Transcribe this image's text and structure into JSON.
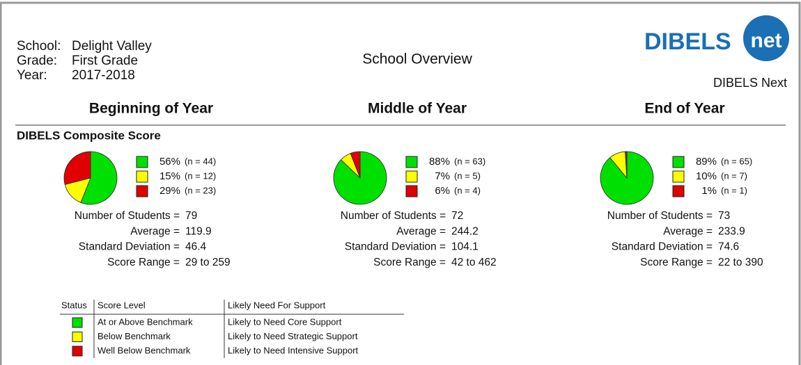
{
  "header": {
    "labels": [
      "School:",
      "Grade:",
      "Year:"
    ],
    "values": [
      "Delight Valley",
      "First Grade",
      "2017-2018"
    ],
    "title": "School Overview",
    "logo_main": "DIBELS",
    "logo_badge": "net",
    "product": "DIBELS Next"
  },
  "section_title": "DIBELS Composite Score",
  "periods": [
    {
      "title": "Beginning of Year",
      "chart": {
        "type": "pie",
        "values": [
          56,
          15,
          29
        ],
        "value_labels": [
          "56%",
          "15%",
          "29%"
        ],
        "n_labels": [
          "(n = 44)",
          "(n = 12)",
          "(n = 23)"
        ],
        "colors": [
          "#00e000",
          "#ffff00",
          "#e00000"
        ]
      },
      "stats": [
        {
          "label": "Number of Students =",
          "value": "79"
        },
        {
          "label": "Average =",
          "value": "119.9"
        },
        {
          "label": "Standard Deviation =",
          "value": "46.4"
        },
        {
          "label": "Score Range =",
          "value": "29 to 259"
        }
      ]
    },
    {
      "title": "Middle of Year",
      "chart": {
        "type": "pie",
        "values": [
          88,
          7,
          6
        ],
        "value_labels": [
          "88%",
          "7%",
          "6%"
        ],
        "n_labels": [
          "(n = 63)",
          "(n = 5)",
          "(n = 4)"
        ],
        "colors": [
          "#00e000",
          "#ffff00",
          "#e00000"
        ]
      },
      "stats": [
        {
          "label": "Number of Students =",
          "value": "72"
        },
        {
          "label": "Average =",
          "value": "244.2"
        },
        {
          "label": "Standard Deviation =",
          "value": "104.1"
        },
        {
          "label": "Score Range =",
          "value": "42 to 462"
        }
      ]
    },
    {
      "title": "End of Year",
      "chart": {
        "type": "pie",
        "values": [
          89,
          10,
          1
        ],
        "value_labels": [
          "89%",
          "10%",
          "1%"
        ],
        "n_labels": [
          "(n = 65)",
          "(n = 7)",
          "(n = 1)"
        ],
        "colors": [
          "#00e000",
          "#ffff00",
          "#e00000"
        ]
      },
      "stats": [
        {
          "label": "Number of Students =",
          "value": "73"
        },
        {
          "label": "Average =",
          "value": "233.9"
        },
        {
          "label": "Standard Deviation =",
          "value": "74.6"
        },
        {
          "label": "Score Range =",
          "value": "22 to 390"
        }
      ]
    }
  ],
  "legend": {
    "headers": [
      "Status",
      "Score Level",
      "Likely Need For Support"
    ],
    "rows": [
      {
        "color": "#00e000",
        "level": "At or Above Benchmark",
        "support": "Likely to Need Core Support"
      },
      {
        "color": "#ffff00",
        "level": "Below Benchmark",
        "support": "Likely to Need Strategic Support"
      },
      {
        "color": "#e00000",
        "level": "Well Below Benchmark",
        "support": "Likely to Need Intensive Support"
      }
    ]
  }
}
